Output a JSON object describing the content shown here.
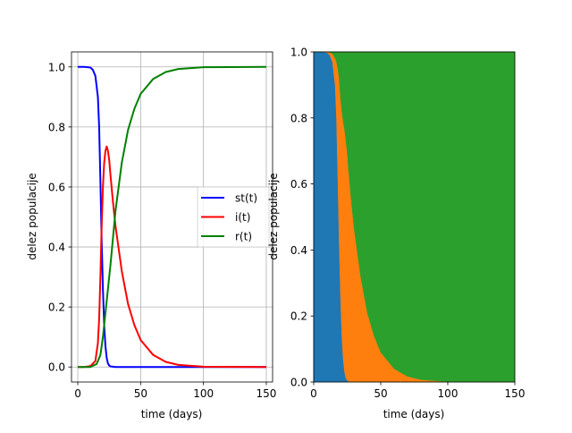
{
  "charts": [
    {
      "type": "line",
      "xlabel": "time (days)",
      "ylabel": "delez populacije",
      "xlim": [
        -5,
        155
      ],
      "ylim": [
        -0.05,
        1.05
      ],
      "xticks": [
        0,
        50,
        100,
        150
      ],
      "yticks": [
        0.0,
        0.2,
        0.4,
        0.6,
        0.8,
        1.0
      ],
      "grid": true,
      "legend_position": "center-right",
      "series": [
        {
          "name": "st(t)",
          "color": "#0000ff",
          "x": [
            0,
            5,
            10,
            12,
            14,
            16,
            17,
            18,
            19,
            20,
            21,
            22,
            23,
            24,
            25,
            26,
            28,
            30,
            40,
            50,
            100,
            150
          ],
          "y": [
            1.0,
            1.0,
            0.998,
            0.99,
            0.97,
            0.9,
            0.8,
            0.62,
            0.42,
            0.26,
            0.14,
            0.07,
            0.03,
            0.012,
            0.005,
            0.002,
            0.001,
            0.0,
            0.0,
            0.0,
            0.0,
            0.0
          ]
        },
        {
          "name": "i(t)",
          "color": "#ff0000",
          "x": [
            0,
            5,
            10,
            14,
            16,
            17,
            18,
            19,
            20,
            21,
            22,
            23,
            24,
            25,
            26,
            28,
            30,
            35,
            40,
            45,
            50,
            60,
            70,
            80,
            100,
            150
          ],
          "y": [
            0.0,
            0.0,
            0.003,
            0.02,
            0.08,
            0.16,
            0.3,
            0.47,
            0.6,
            0.68,
            0.72,
            0.735,
            0.72,
            0.69,
            0.64,
            0.55,
            0.47,
            0.32,
            0.21,
            0.14,
            0.09,
            0.04,
            0.017,
            0.007,
            0.001,
            0.0
          ]
        },
        {
          "name": "r(t)",
          "color": "#008000",
          "x": [
            0,
            10,
            15,
            18,
            20,
            22,
            24,
            26,
            28,
            30,
            35,
            40,
            45,
            50,
            60,
            70,
            80,
            100,
            150
          ],
          "y": [
            0.0,
            0.0,
            0.01,
            0.04,
            0.1,
            0.18,
            0.26,
            0.34,
            0.43,
            0.52,
            0.68,
            0.79,
            0.86,
            0.91,
            0.96,
            0.983,
            0.993,
            0.999,
            1.0
          ]
        }
      ]
    },
    {
      "type": "area",
      "stacked": true,
      "xlabel": "time (days)",
      "ylabel": "delez populacije",
      "xlim": [
        0,
        150
      ],
      "ylim": [
        0,
        1
      ],
      "xticks": [
        0,
        50,
        100,
        150
      ],
      "yticks": [
        0.0,
        0.2,
        0.4,
        0.6,
        0.8,
        1.0
      ],
      "grid": false,
      "x": [
        0,
        5,
        10,
        12,
        14,
        16,
        17,
        18,
        19,
        20,
        21,
        22,
        23,
        24,
        25,
        26,
        28,
        30,
        35,
        40,
        45,
        50,
        60,
        70,
        80,
        100,
        150
      ],
      "series": [
        {
          "color": "#1f77b4",
          "values": [
            1.0,
            1.0,
            0.998,
            0.99,
            0.97,
            0.9,
            0.8,
            0.62,
            0.42,
            0.26,
            0.14,
            0.07,
            0.03,
            0.012,
            0.005,
            0.002,
            0.001,
            0.0,
            0.0,
            0.0,
            0.0,
            0.0,
            0.0,
            0.0,
            0.0,
            0.0,
            0.0
          ]
        },
        {
          "color": "#ff7f0e",
          "values": [
            0.0,
            0.0,
            0.002,
            0.008,
            0.025,
            0.08,
            0.17,
            0.33,
            0.5,
            0.6,
            0.68,
            0.72,
            0.735,
            0.72,
            0.69,
            0.64,
            0.55,
            0.47,
            0.32,
            0.21,
            0.14,
            0.09,
            0.04,
            0.017,
            0.007,
            0.001,
            0.0
          ]
        },
        {
          "color": "#2ca02c",
          "values": [
            0.0,
            0.0,
            0.0,
            0.002,
            0.005,
            0.02,
            0.03,
            0.05,
            0.08,
            0.14,
            0.18,
            0.21,
            0.235,
            0.268,
            0.305,
            0.358,
            0.449,
            0.53,
            0.68,
            0.79,
            0.86,
            0.91,
            0.96,
            0.983,
            0.993,
            0.999,
            1.0
          ]
        }
      ]
    }
  ]
}
